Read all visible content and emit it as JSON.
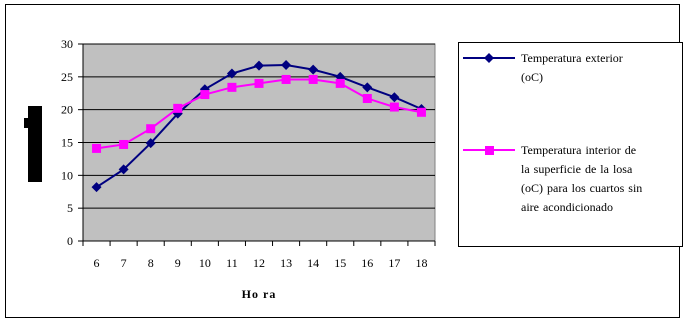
{
  "chart_data": {
    "type": "line",
    "title": "",
    "xlabel": "Ho ra",
    "ylabel": "",
    "categories": [
      "6",
      "7",
      "8",
      "9",
      "10",
      "11",
      "12",
      "13",
      "14",
      "15",
      "16",
      "17",
      "18"
    ],
    "ylim": [
      0,
      30
    ],
    "yticks": [
      "0",
      "5",
      "10",
      "15",
      "20",
      "25",
      "30"
    ],
    "grid": "horizontal",
    "plot_background": "#c0c0c0",
    "legend_position": "right",
    "series": [
      {
        "name": "Temperatura exterior (oC)",
        "name_lines": [
          "Temperatura exterior",
          "(oC)"
        ],
        "color": "#000080",
        "marker": "diamond",
        "values": [
          8.2,
          10.9,
          14.9,
          19.4,
          23.1,
          25.5,
          26.7,
          26.8,
          26.1,
          25.0,
          23.4,
          21.9,
          20.1
        ]
      },
      {
        "name": "Temperatura interior de la superficie de la losa (oC) para los cuartos sin aire acondicionado",
        "name_lines": [
          "Temperatura interior de",
          "la superficie de la losa",
          "(oC) para los cuartos sin",
          "aire acondicionado"
        ],
        "color": "#ff00ff",
        "marker": "square",
        "values": [
          14.1,
          14.7,
          17.1,
          20.2,
          22.3,
          23.4,
          24.0,
          24.6,
          24.6,
          24.0,
          21.7,
          20.4,
          19.6
        ]
      }
    ]
  }
}
